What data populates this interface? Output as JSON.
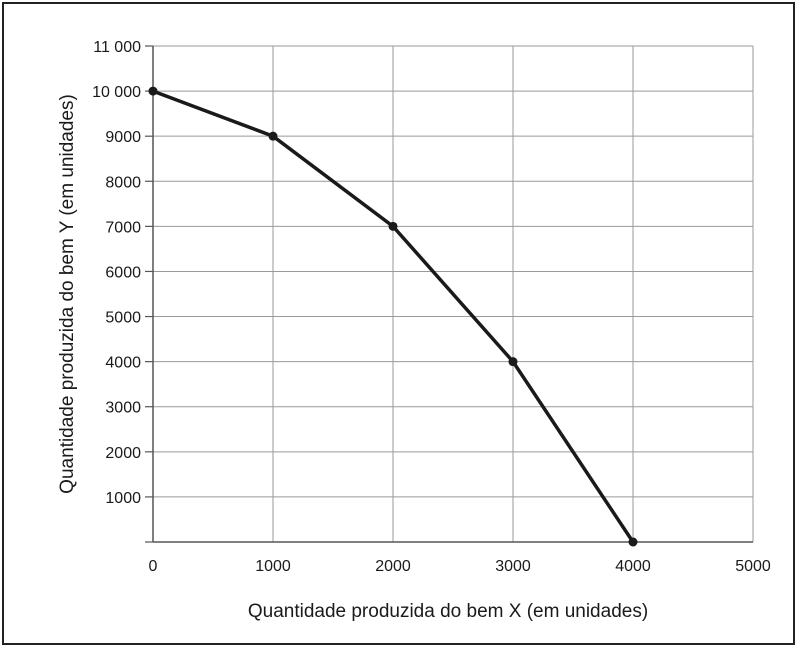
{
  "chart_data": {
    "type": "line",
    "title": "",
    "xlabel": "Quantidade produzida do bem X (em unidades)",
    "ylabel": "Quantidade produzida do bem Y (em unidades)",
    "xlim": [
      0,
      5000
    ],
    "ylim": [
      0,
      11000
    ],
    "x_ticks": [
      0,
      1000,
      2000,
      3000,
      4000,
      5000
    ],
    "x_tick_labels": [
      "0",
      "1000",
      "2000",
      "3000",
      "4000",
      "5000"
    ],
    "y_ticks": [
      1000,
      2000,
      3000,
      4000,
      5000,
      6000,
      7000,
      8000,
      9000,
      10000,
      11000
    ],
    "y_tick_labels": [
      "1000",
      "2000",
      "3000",
      "4000",
      "5000",
      "6000",
      "7000",
      "8000",
      "9000",
      "10 000",
      "11 000"
    ],
    "grid": true,
    "legend": "none",
    "series": [
      {
        "x": [
          0,
          1000,
          2000,
          3000,
          4000
        ],
        "y": [
          10000,
          9000,
          7000,
          4000,
          0
        ],
        "color": "#1a1a1a"
      }
    ]
  }
}
